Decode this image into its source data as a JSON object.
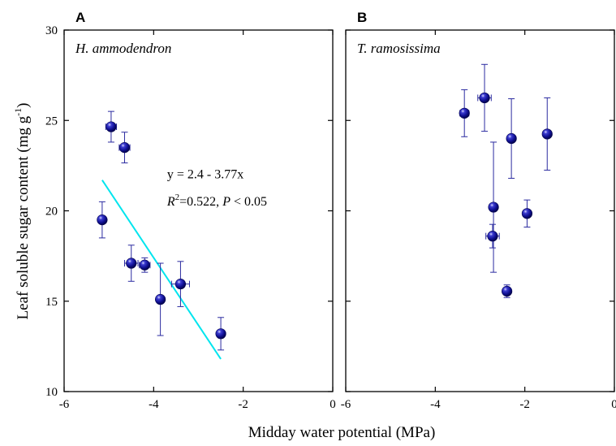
{
  "chart_data": {
    "type": "scatter",
    "xlabel": "Midday  water  potential  (MPa)",
    "ylabel": {
      "main": "Leaf soluble sugar content (mg g",
      "sup": "-1",
      "close": ")"
    },
    "xlim": [
      -6,
      0
    ],
    "ylim": [
      10,
      30
    ],
    "x_ticks": [
      "-6",
      "-4",
      "-2",
      "0"
    ],
    "x_tick_values": [
      -6,
      -4,
      -2,
      0
    ],
    "y_ticks": [
      "10",
      "15",
      "20",
      "25",
      "30"
    ],
    "y_tick_values": [
      10,
      15,
      20,
      25,
      30
    ],
    "marker_color": "#0d0d8c",
    "errorbar_color": "#2b2ba0",
    "fit_color": "#00e5ee",
    "grid": false,
    "panels": [
      {
        "label": "A",
        "species": "H. ammodendron",
        "points": [
          {
            "x": -4.95,
            "y": 24.65,
            "xerr": 0.12,
            "yerr": 0.85
          },
          {
            "x": -4.65,
            "y": 23.5,
            "xerr": 0.12,
            "yerr": 0.85
          },
          {
            "x": -5.15,
            "y": 19.5,
            "xerr": 0.0,
            "yerr": 1.0
          },
          {
            "x": -4.5,
            "y": 17.1,
            "xerr": 0.15,
            "yerr": 1.0
          },
          {
            "x": -4.2,
            "y": 17.0,
            "xerr": 0.12,
            "yerr": 0.4
          },
          {
            "x": -3.85,
            "y": 15.1,
            "xerr": 0.05,
            "yerr": 2.0
          },
          {
            "x": -3.4,
            "y": 15.95,
            "xerr": 0.2,
            "yerr": 1.25
          },
          {
            "x": -2.5,
            "y": 13.2,
            "xerr": 0.0,
            "yerr": 0.9
          }
        ],
        "fit": {
          "x": [
            -5.15,
            -2.5
          ],
          "y": [
            21.7,
            11.8
          ]
        },
        "annotation": {
          "equation": "y = 2.4 - 3.77x",
          "r2_prefix": "R",
          "r2_sup": "2",
          "r2_value": "=0.522, ",
          "p_label": "P",
          "p_value": " < 0.05"
        }
      },
      {
        "label": "B",
        "species": "T. ramosissima",
        "points": [
          {
            "x": -3.35,
            "y": 25.4,
            "xerr": 0.1,
            "yerr": 1.3
          },
          {
            "x": -2.9,
            "y": 26.25,
            "xerr": 0.15,
            "yerr": 1.85
          },
          {
            "x": -2.3,
            "y": 24.0,
            "xerr": 0.0,
            "yerr": 2.2
          },
          {
            "x": -1.5,
            "y": 24.25,
            "xerr": 0.0,
            "yerr": 2.0
          },
          {
            "x": -2.7,
            "y": 20.2,
            "xerr": 0.0,
            "yerr": 3.6
          },
          {
            "x": -1.95,
            "y": 19.85,
            "xerr": 0.0,
            "yerr": 0.75
          },
          {
            "x": -2.72,
            "y": 18.6,
            "xerr": 0.15,
            "yerr": 0.65
          },
          {
            "x": -2.4,
            "y": 15.55,
            "xerr": 0.05,
            "yerr": 0.35
          }
        ]
      }
    ]
  }
}
